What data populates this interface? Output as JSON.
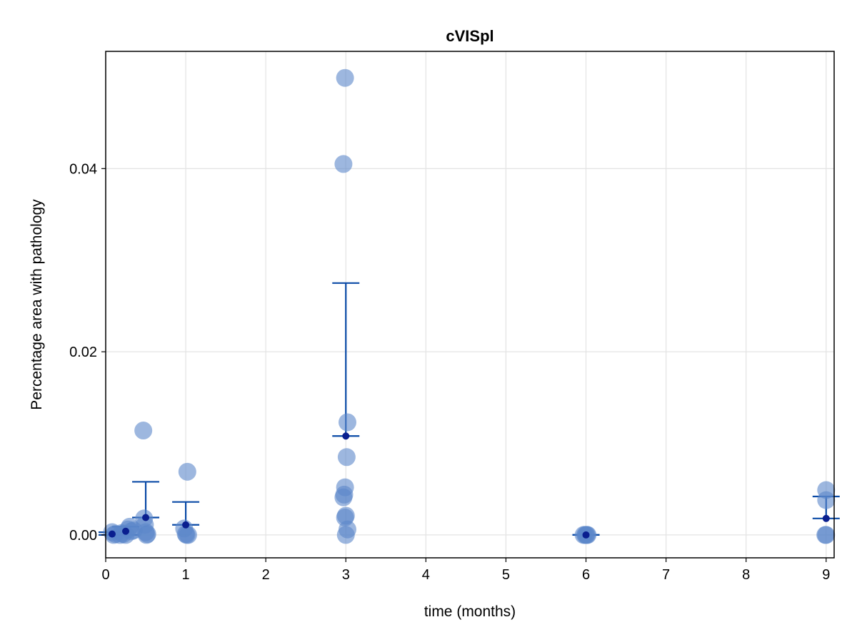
{
  "chart_data": {
    "type": "scatter",
    "title": "cVISpl",
    "xlabel": "time (months)",
    "ylabel": "Percentage area with pathology",
    "xlim": [
      0,
      9.1
    ],
    "ylim": [
      -0.0025,
      0.0528
    ],
    "x_ticks": [
      0,
      1,
      2,
      3,
      4,
      5,
      6,
      7,
      8,
      9
    ],
    "x_tick_labels": [
      "0",
      "1",
      "2",
      "3",
      "4",
      "5",
      "6",
      "7",
      "8",
      "9"
    ],
    "y_ticks": [
      0.0,
      0.02,
      0.04
    ],
    "y_tick_labels": [
      "0.00",
      "0.02",
      "0.04"
    ],
    "grid": true,
    "colors": {
      "points": "#5b87c9",
      "mean": "#0a1f8f",
      "errorbar": "#0a4aa6",
      "grid": "#e3e3e3",
      "frame": "#000000"
    },
    "series": [
      {
        "points": [
          {
            "x": 0.08,
            "y": 0.0003
          },
          {
            "x": 0.1,
            "y": 0.0
          },
          {
            "x": 0.12,
            "y": 0.0001
          },
          {
            "x": 0.18,
            "y": 0.0
          },
          {
            "x": 0.2,
            "y": 0.0002
          },
          {
            "x": 0.22,
            "y": 0.0001
          },
          {
            "x": 0.25,
            "y": 0.0
          },
          {
            "x": 0.28,
            "y": 0.0006
          },
          {
            "x": 0.3,
            "y": 0.0009
          },
          {
            "x": 0.32,
            "y": 0.0004
          },
          {
            "x": 0.35,
            "y": 0.0005
          },
          {
            "x": 0.47,
            "y": 0.0114
          },
          {
            "x": 0.48,
            "y": 0.0018
          },
          {
            "x": 0.49,
            "y": 0.0011
          },
          {
            "x": 0.5,
            "y": 0.0003
          },
          {
            "x": 0.51,
            "y": 0.0
          },
          {
            "x": 0.52,
            "y": 0.0001
          },
          {
            "x": 0.98,
            "y": 0.0007
          },
          {
            "x": 1.0,
            "y": 0.0001
          },
          {
            "x": 1.01,
            "y": 0.0
          },
          {
            "x": 1.02,
            "y": 0.0069
          },
          {
            "x": 1.03,
            "y": 0.0
          },
          {
            "x": 2.99,
            "y": 0.0499
          },
          {
            "x": 2.97,
            "y": 0.0405
          },
          {
            "x": 3.02,
            "y": 0.0123
          },
          {
            "x": 3.01,
            "y": 0.0085
          },
          {
            "x": 2.99,
            "y": 0.0052
          },
          {
            "x": 2.98,
            "y": 0.0044
          },
          {
            "x": 2.97,
            "y": 0.0041
          },
          {
            "x": 3.0,
            "y": 0.0021
          },
          {
            "x": 2.99,
            "y": 0.0019
          },
          {
            "x": 3.02,
            "y": 0.0006
          },
          {
            "x": 3.0,
            "y": 0.0
          },
          {
            "x": 5.97,
            "y": 0.0
          },
          {
            "x": 5.99,
            "y": 0.0
          },
          {
            "x": 6.0,
            "y": 0.0
          },
          {
            "x": 6.01,
            "y": 0.0
          },
          {
            "x": 6.02,
            "y": 0.0
          },
          {
            "x": 9.0,
            "y": 0.0049
          },
          {
            "x": 9.0,
            "y": 0.0038
          },
          {
            "x": 8.99,
            "y": 0.0
          },
          {
            "x": 9.0,
            "y": 0.0
          }
        ],
        "means": [
          {
            "x": 0.08,
            "mean": 0.0001,
            "lower": 0.0,
            "upper": 0.0003
          },
          {
            "x": 0.25,
            "mean": 0.0004,
            "lower": 0.0,
            "upper": 0.0009
          },
          {
            "x": 0.5,
            "mean": 0.0019,
            "lower": 0.0019,
            "upper": 0.0058
          },
          {
            "x": 1.0,
            "mean": 0.0011,
            "lower": 0.0011,
            "upper": 0.0036
          },
          {
            "x": 3.0,
            "mean": 0.0108,
            "lower": 0.0108,
            "upper": 0.0275
          },
          {
            "x": 6.0,
            "mean": 0.0,
            "lower": 0.0,
            "upper": 0.0
          },
          {
            "x": 9.0,
            "mean": 0.0018,
            "lower": 0.0018,
            "upper": 0.0042
          }
        ]
      }
    ]
  }
}
